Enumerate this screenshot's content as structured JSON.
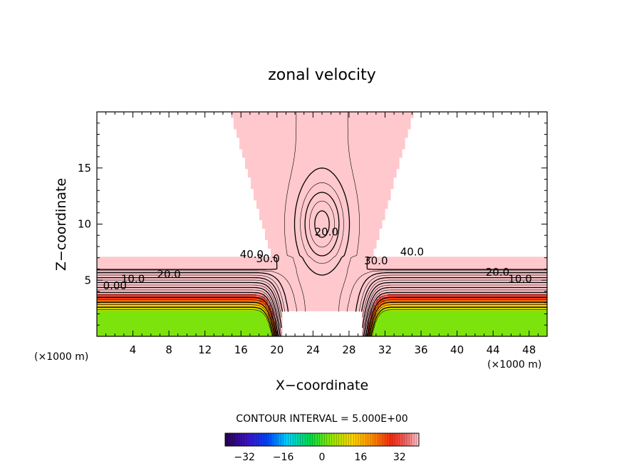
{
  "chart_data": {
    "type": "contour",
    "title": "zonal velocity",
    "xlabel": "X−coordinate",
    "ylabel": "Z−coordinate",
    "x_unit_left": "(×1000 m)",
    "x_unit_right": "(×1000 m)",
    "xlim": [
      0,
      50
    ],
    "ylim": [
      0,
      20
    ],
    "x_ticks": [
      4,
      8,
      12,
      16,
      20,
      24,
      28,
      32,
      36,
      40,
      44,
      48
    ],
    "y_ticks": [
      5,
      10,
      15
    ],
    "contour_interval_text": "CONTOUR INTERVAL = 5.000E+00",
    "contour_labels": [
      {
        "text": "40.0",
        "x": 17.2,
        "y": 7.0
      },
      {
        "text": "30.0",
        "x": 19.0,
        "y": 6.6
      },
      {
        "text": "20.0",
        "x": 8.0,
        "y": 5.2
      },
      {
        "text": "10.0",
        "x": 4.0,
        "y": 4.8
      },
      {
        "text": "0.00",
        "x": 2.0,
        "y": 4.2
      },
      {
        "text": "20.0",
        "x": 25.5,
        "y": 9.0
      },
      {
        "text": "30.0",
        "x": 31.0,
        "y": 6.4
      },
      {
        "text": "40.0",
        "x": 35.0,
        "y": 7.2
      },
      {
        "text": "20.0",
        "x": 44.5,
        "y": 5.4
      },
      {
        "text": "10.0",
        "x": 47.0,
        "y": 4.8
      }
    ],
    "colorbar": {
      "min": -40,
      "max": 40,
      "interval": 5,
      "ticks": [
        -32,
        -16,
        0,
        16,
        32
      ]
    }
  }
}
